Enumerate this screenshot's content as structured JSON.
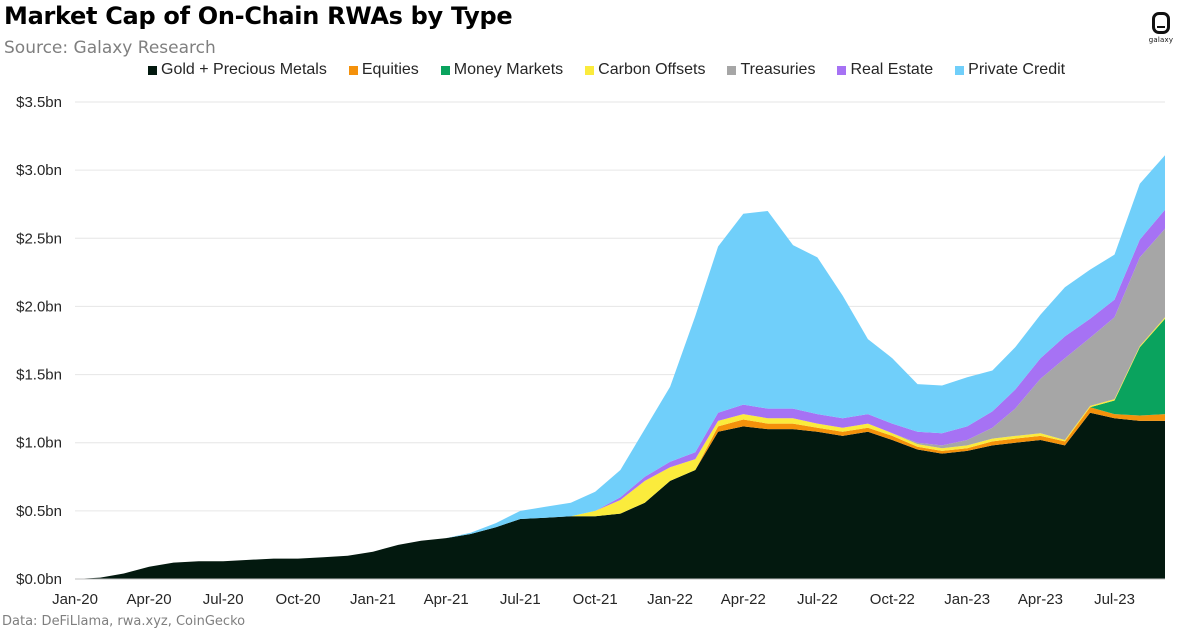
{
  "header": {
    "title": "Market Cap of On-Chain RWAs by Type",
    "subtitle": "Source: Galaxy Research"
  },
  "logo": {
    "text": "galaxy",
    "icon": "galaxy-logo-icon"
  },
  "footnote": "Data: DeFiLlama, rwa.xyz, CoinGecko",
  "chart_data": {
    "type": "area",
    "stacked": true,
    "title": "Market Cap of On-Chain RWAs by Type",
    "xlabel": "",
    "ylabel": "",
    "x_ticks": [
      "Jan-20",
      "Apr-20",
      "Jul-20",
      "Oct-20",
      "Jan-21",
      "Apr-21",
      "Jul-21",
      "Oct-21",
      "Jan-22",
      "Apr-22",
      "Jul-22",
      "Oct-22",
      "Jan-23",
      "Apr-23",
      "Jul-23"
    ],
    "y_ticks": [
      "$0.0bn",
      "$0.5bn",
      "$1.0bn",
      "$1.5bn",
      "$2.0bn",
      "$2.5bn",
      "$3.0bn",
      "$3.5bn"
    ],
    "ylim": [
      0,
      3.5
    ],
    "xlim": [
      "2020-01-01",
      "2023-09-01"
    ],
    "grid": "horizontal",
    "legend_position": "top",
    "x": [
      "2020-01-01",
      "2020-02-01",
      "2020-03-01",
      "2020-04-01",
      "2020-05-01",
      "2020-06-01",
      "2020-07-01",
      "2020-08-01",
      "2020-09-01",
      "2020-10-01",
      "2020-11-01",
      "2020-12-01",
      "2021-01-01",
      "2021-02-01",
      "2021-03-01",
      "2021-04-01",
      "2021-05-01",
      "2021-06-01",
      "2021-07-01",
      "2021-08-01",
      "2021-09-01",
      "2021-10-01",
      "2021-11-01",
      "2021-12-01",
      "2022-01-01",
      "2022-02-01",
      "2022-03-01",
      "2022-04-01",
      "2022-05-01",
      "2022-06-01",
      "2022-07-01",
      "2022-08-01",
      "2022-09-01",
      "2022-10-01",
      "2022-11-01",
      "2022-12-01",
      "2023-01-01",
      "2023-02-01",
      "2023-03-01",
      "2023-04-01",
      "2023-05-01",
      "2023-06-01",
      "2023-07-01",
      "2023-08-01",
      "2023-09-01"
    ],
    "series": [
      {
        "name": "Gold + Precious Metals",
        "color": "#03190f",
        "values": [
          0.0,
          0.01,
          0.04,
          0.09,
          0.12,
          0.13,
          0.13,
          0.14,
          0.15,
          0.15,
          0.16,
          0.17,
          0.2,
          0.25,
          0.28,
          0.3,
          0.33,
          0.38,
          0.44,
          0.45,
          0.46,
          0.46,
          0.48,
          0.56,
          0.72,
          0.8,
          1.08,
          1.12,
          1.1,
          1.1,
          1.08,
          1.05,
          1.08,
          1.02,
          0.95,
          0.92,
          0.94,
          0.98,
          1.0,
          1.02,
          0.98,
          1.22,
          1.18,
          1.16,
          1.16
        ]
      },
      {
        "name": "Equities",
        "color": "#f4910b",
        "values": [
          0,
          0,
          0,
          0,
          0,
          0,
          0,
          0,
          0,
          0,
          0,
          0,
          0,
          0,
          0,
          0,
          0,
          0,
          0,
          0,
          0,
          0,
          0,
          0,
          0,
          0,
          0.04,
          0.05,
          0.04,
          0.04,
          0.03,
          0.03,
          0.03,
          0.03,
          0.02,
          0.02,
          0.02,
          0.03,
          0.03,
          0.03,
          0.03,
          0.04,
          0.03,
          0.04,
          0.05
        ]
      },
      {
        "name": "Money Markets",
        "color": "#0aa35e",
        "values": [
          0,
          0,
          0,
          0,
          0,
          0,
          0,
          0,
          0,
          0,
          0,
          0,
          0,
          0,
          0,
          0,
          0,
          0,
          0,
          0,
          0,
          0,
          0,
          0,
          0,
          0,
          0,
          0,
          0,
          0,
          0,
          0,
          0,
          0,
          0,
          0,
          0,
          0,
          0,
          0,
          0,
          0,
          0.1,
          0.5,
          0.7
        ]
      },
      {
        "name": "Carbon Offsets",
        "color": "#fbeb3c",
        "values": [
          0,
          0,
          0,
          0,
          0,
          0,
          0,
          0,
          0,
          0,
          0,
          0,
          0,
          0,
          0,
          0,
          0,
          0,
          0,
          0,
          0,
          0.04,
          0.1,
          0.16,
          0.1,
          0.08,
          0.04,
          0.04,
          0.04,
          0.04,
          0.03,
          0.03,
          0.03,
          0.02,
          0.02,
          0.02,
          0.02,
          0.02,
          0.02,
          0.02,
          0.01,
          0.01,
          0.01,
          0.01,
          0.01
        ]
      },
      {
        "name": "Treasuries",
        "color": "#a6a6a6",
        "values": [
          0,
          0,
          0,
          0,
          0,
          0,
          0,
          0,
          0,
          0,
          0,
          0,
          0,
          0,
          0,
          0,
          0,
          0,
          0,
          0,
          0,
          0,
          0,
          0,
          0,
          0,
          0,
          0,
          0,
          0,
          0,
          0,
          0,
          0,
          0.01,
          0.02,
          0.04,
          0.08,
          0.2,
          0.4,
          0.6,
          0.5,
          0.6,
          0.65,
          0.65
        ]
      },
      {
        "name": "Real Estate",
        "color": "#a672f4",
        "values": [
          0,
          0,
          0,
          0,
          0,
          0,
          0,
          0,
          0,
          0,
          0,
          0,
          0,
          0,
          0,
          0,
          0,
          0,
          0,
          0,
          0,
          0,
          0.02,
          0.03,
          0.04,
          0.05,
          0.06,
          0.07,
          0.07,
          0.07,
          0.07,
          0.07,
          0.07,
          0.07,
          0.08,
          0.09,
          0.1,
          0.12,
          0.14,
          0.15,
          0.16,
          0.14,
          0.13,
          0.13,
          0.14
        ]
      },
      {
        "name": "Private Credit",
        "color": "#70cffa",
        "values": [
          0,
          0,
          0,
          0,
          0,
          0,
          0,
          0,
          0,
          0,
          0,
          0,
          0,
          0,
          0,
          0,
          0.01,
          0.03,
          0.06,
          0.08,
          0.1,
          0.14,
          0.2,
          0.35,
          0.55,
          1.0,
          1.22,
          1.4,
          1.45,
          1.2,
          1.15,
          0.9,
          0.55,
          0.48,
          0.35,
          0.35,
          0.36,
          0.3,
          0.31,
          0.32,
          0.36,
          0.36,
          0.33,
          0.41,
          0.4
        ]
      }
    ]
  }
}
